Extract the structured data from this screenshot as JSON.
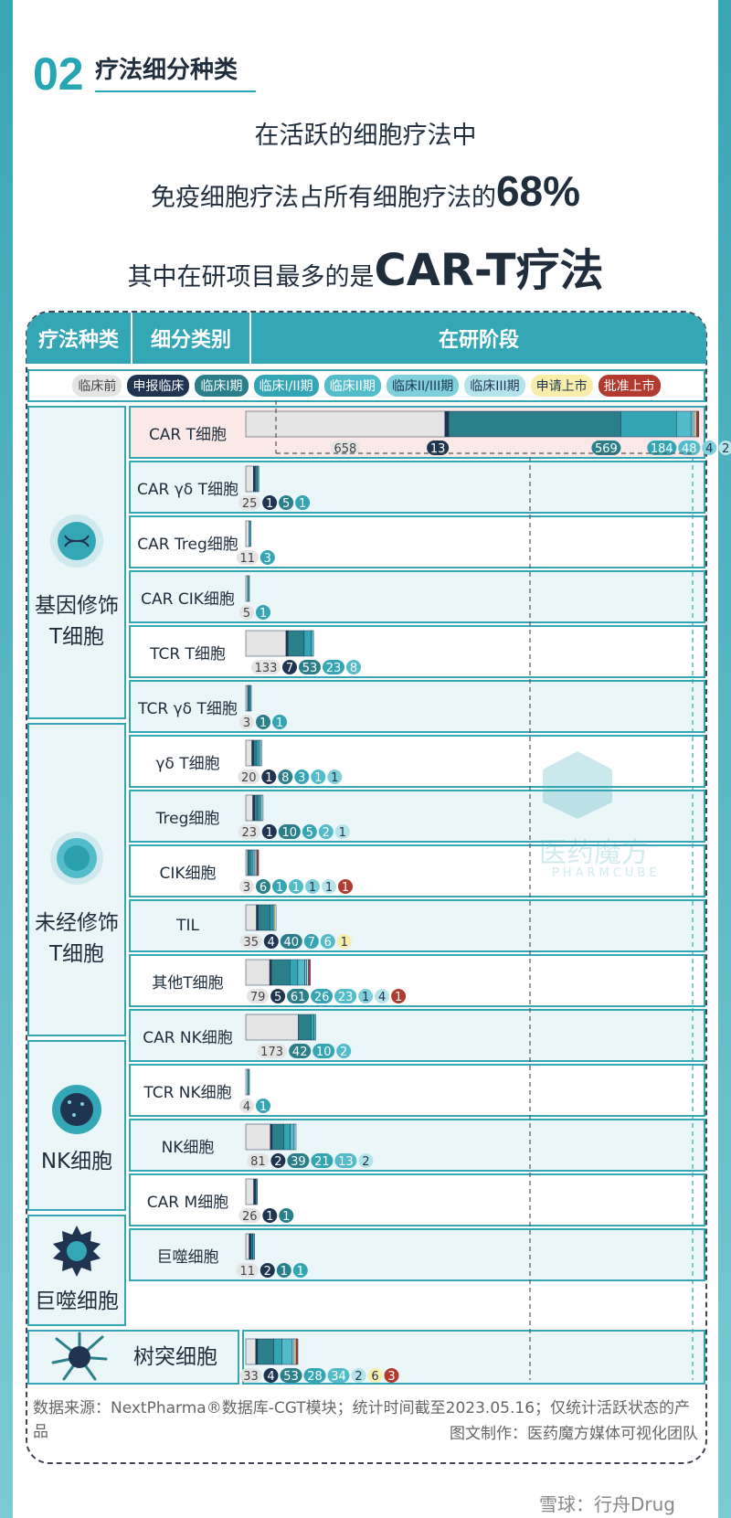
{
  "section": {
    "num": "02",
    "title": "疗法细分种类"
  },
  "headline": {
    "line1": "在活跃的细胞疗法中",
    "line2_prefix": "免疫细胞疗法占所有细胞疗法的",
    "line2_highlight": "68%",
    "line3_prefix": "其中在研项目最多的是",
    "line3_highlight": "CAR-T疗法"
  },
  "table_header": {
    "col_type": "疗法种类",
    "col_sub": "细分类别",
    "col_stage": "在研阶段"
  },
  "colors": {
    "preclinical": "#e4e4e4",
    "ind": "#1e3450",
    "phase1": "#2a7f8a",
    "phase1_2": "#34a5b4",
    "phase2": "#52bcca",
    "phase2_3": "#7fd0da",
    "phase3": "#b4e4ea",
    "nda": "#f8eeaa",
    "approved": "#b23a2e",
    "accent": "#33a7b6"
  },
  "groups": [
    {
      "label_line1": "基因修饰",
      "label_line2": "T细胞",
      "icon": "dna-cell-icon"
    },
    {
      "label_line1": "未经修饰",
      "label_line2": "T细胞",
      "icon": "t-cell-icon"
    },
    {
      "label_line1": "NK细胞",
      "label_line2": "",
      "icon": "nk-cell-icon"
    },
    {
      "label_line1": "巨噬细胞",
      "label_line2": "",
      "icon": "macrophage-icon"
    },
    {
      "label_line1": "树突细胞",
      "label_line2": "",
      "icon": "dendritic-cell-icon"
    }
  ],
  "chart_data": {
    "type": "bar",
    "stacked": true,
    "stages": [
      "临床前",
      "申报临床",
      "临床I期",
      "临床I/II期",
      "临床II期",
      "临床II/III期",
      "临床III期",
      "申请上市",
      "批准上市"
    ],
    "categories": [
      "CAR T细胞",
      "CAR γδ T细胞",
      "CAR Treg细胞",
      "CAR CIK细胞",
      "TCR T细胞",
      "TCR γδ T细胞",
      "γδ T细胞",
      "Treg细胞",
      "CIK细胞",
      "TIL",
      "其他T细胞",
      "CAR NK细胞",
      "TCR NK细胞",
      "NK细胞",
      "CAR M细胞",
      "巨噬细胞",
      "树突细胞"
    ],
    "series": [
      {
        "name": "临床前",
        "values": [
          658,
          25,
          11,
          5,
          133,
          3,
          20,
          23,
          3,
          35,
          79,
          173,
          4,
          81,
          26,
          11,
          33
        ]
      },
      {
        "name": "申报临床",
        "values": [
          13,
          1,
          0,
          0,
          7,
          0,
          1,
          1,
          0,
          4,
          5,
          0,
          0,
          2,
          1,
          2,
          4
        ]
      },
      {
        "name": "临床I期",
        "values": [
          569,
          5,
          0,
          0,
          53,
          1,
          8,
          10,
          6,
          40,
          61,
          42,
          0,
          39,
          1,
          1,
          53
        ]
      },
      {
        "name": "临床I/II期",
        "values": [
          184,
          1,
          3,
          1,
          23,
          1,
          3,
          5,
          1,
          7,
          26,
          10,
          1,
          21,
          0,
          1,
          28
        ]
      },
      {
        "name": "临床II期",
        "values": [
          48,
          0,
          0,
          0,
          8,
          0,
          1,
          2,
          1,
          6,
          23,
          2,
          0,
          13,
          0,
          0,
          34
        ]
      },
      {
        "name": "临床II/III期",
        "values": [
          4,
          0,
          0,
          0,
          0,
          0,
          1,
          0,
          1,
          0,
          1,
          0,
          0,
          0,
          0,
          0,
          0
        ]
      },
      {
        "name": "临床III期",
        "values": [
          2,
          0,
          0,
          0,
          0,
          0,
          0,
          1,
          1,
          0,
          4,
          0,
          0,
          2,
          0,
          0,
          2
        ]
      },
      {
        "name": "申请上市",
        "values": [
          3,
          0,
          0,
          0,
          0,
          0,
          0,
          0,
          0,
          1,
          0,
          0,
          0,
          0,
          0,
          0,
          6
        ]
      },
      {
        "name": "批准上市",
        "values": [
          8,
          0,
          0,
          0,
          0,
          0,
          0,
          0,
          1,
          0,
          1,
          0,
          0,
          0,
          0,
          0,
          3
        ]
      }
    ]
  },
  "footer": {
    "source": "数据来源：NextPharma®数据库-CGT模块；统计时间截至2023.05.16；仅统计活跃状态的产品",
    "credit": "图文制作：医药魔方媒体可视化团队",
    "watermark": "雪球：行舟Drug",
    "brand_cn": "医药魔方",
    "brand_en": "PHARMCUBE"
  }
}
